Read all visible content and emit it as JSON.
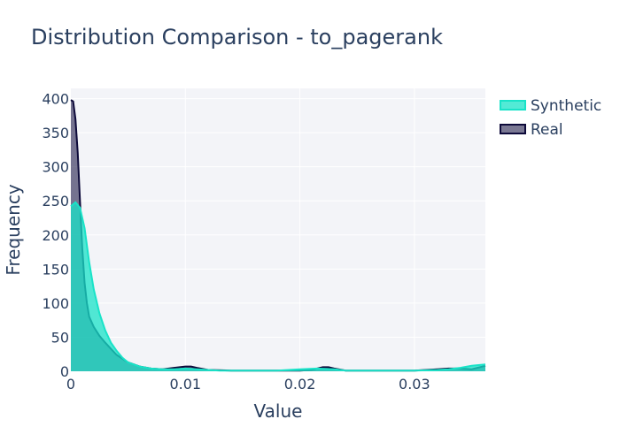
{
  "chart_data": {
    "type": "area",
    "title": "Distribution Comparison - to_pagerank",
    "xlabel": "Value",
    "ylabel": "Frequency",
    "xlim": [
      0,
      0.0362
    ],
    "ylim": [
      0,
      415
    ],
    "x_ticks": [
      0,
      0.01,
      0.02,
      0.03
    ],
    "x_tick_labels": [
      "0",
      "0.01",
      "0.02",
      "0.03"
    ],
    "y_ticks": [
      0,
      50,
      100,
      150,
      200,
      250,
      300,
      350,
      400
    ],
    "y_tick_labels": [
      "0",
      "50",
      "100",
      "150",
      "200",
      "250",
      "300",
      "350",
      "400"
    ],
    "grid": true,
    "legend_position": "top-right",
    "series": [
      {
        "name": "Synthetic",
        "color": "#19e3c8",
        "x": [
          0,
          0.0004,
          0.0008,
          0.0012,
          0.0016,
          0.002,
          0.0025,
          0.003,
          0.0035,
          0.004,
          0.0045,
          0.005,
          0.006,
          0.007,
          0.008,
          0.009,
          0.01,
          0.011,
          0.012,
          0.013,
          0.014,
          0.016,
          0.018,
          0.02,
          0.0215,
          0.023,
          0.024,
          0.026,
          0.028,
          0.03,
          0.032,
          0.033,
          0.034,
          0.035,
          0.0362
        ],
        "values": [
          242,
          248,
          240,
          210,
          160,
          120,
          85,
          60,
          42,
          30,
          20,
          13,
          7,
          4,
          3,
          3,
          4,
          3,
          2,
          1,
          1,
          1,
          1,
          3,
          4,
          3,
          1,
          1,
          1,
          1,
          2,
          3,
          5,
          8,
          10
        ]
      },
      {
        "name": "Real",
        "color": "#0d0a3a",
        "x": [
          0,
          0.0002,
          0.0004,
          0.0006,
          0.0008,
          0.001,
          0.0012,
          0.0014,
          0.0016,
          0.002,
          0.0025,
          0.003,
          0.0035,
          0.004,
          0.005,
          0.006,
          0.007,
          0.008,
          0.009,
          0.01,
          0.0105,
          0.011,
          0.012,
          0.014,
          0.016,
          0.018,
          0.02,
          0.021,
          0.022,
          0.0225,
          0.023,
          0.024,
          0.026,
          0.028,
          0.03,
          0.031,
          0.032,
          0.033,
          0.034,
          0.035,
          0.0362
        ],
        "values": [
          398,
          396,
          370,
          320,
          250,
          180,
          130,
          100,
          80,
          65,
          52,
          42,
          33,
          24,
          13,
          7,
          4,
          3,
          5,
          7,
          7,
          5,
          2,
          1,
          1,
          1,
          1,
          2,
          6,
          6,
          4,
          1,
          1,
          1,
          1,
          2,
          3,
          4,
          4,
          3,
          8
        ]
      }
    ]
  }
}
